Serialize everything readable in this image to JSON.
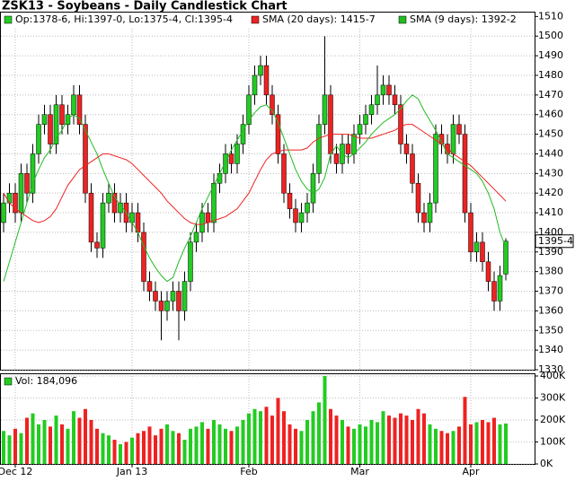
{
  "chart_data": {
    "type": "candlestick",
    "title": "ZSK13 - Soybeans - Daily Candlestick Chart",
    "ohlc_label": "Op:1378-6, Hi:1397-0, Lo:1375-4, Cl:1395-4",
    "last_label": "1395-4",
    "categories": [
      null,
      null,
      "Dec 12",
      null,
      null,
      null,
      null,
      null,
      null,
      null,
      null,
      null,
      null,
      null,
      null,
      null,
      null,
      null,
      null,
      null,
      null,
      null,
      "Jan 13",
      null,
      null,
      null,
      null,
      null,
      null,
      null,
      null,
      null,
      null,
      null,
      null,
      null,
      null,
      null,
      null,
      null,
      null,
      null,
      "Feb",
      null,
      null,
      null,
      null,
      null,
      null,
      null,
      null,
      null,
      null,
      null,
      null,
      null,
      null,
      null,
      null,
      null,
      null,
      "Mar",
      null,
      null,
      null,
      null,
      null,
      null,
      null,
      null,
      null,
      null,
      null,
      null,
      null,
      null,
      null,
      null,
      null,
      null,
      "Apr",
      null,
      null,
      null,
      null,
      null,
      null
    ],
    "open": [
      1405,
      1415,
      1420,
      1410,
      1430,
      1420,
      1440,
      1455,
      1460,
      1445,
      1465,
      1455,
      1460,
      1470,
      1455,
      1420,
      1395,
      1392,
      1415,
      1420,
      1410,
      1415,
      1405,
      1410,
      1400,
      1375,
      1370,
      1365,
      1360,
      1365,
      1370,
      1360,
      1375,
      1395,
      1400,
      1410,
      1405,
      1425,
      1430,
      1440,
      1435,
      1445,
      1455,
      1470,
      1480,
      1485,
      1470,
      1460,
      1440,
      1420,
      1412,
      1405,
      1410,
      1415,
      1430,
      1455,
      1470,
      1440,
      1435,
      1445,
      1440,
      1450,
      1455,
      1460,
      1465,
      1470,
      1475,
      1470,
      1465,
      1445,
      1440,
      1425,
      1410,
      1405,
      1415,
      1450,
      1445,
      1440,
      1455,
      1450,
      1410,
      1390,
      1395,
      1385,
      1375,
      1365,
      1378.75
    ],
    "high": [
      1420,
      1425,
      1425,
      1435,
      1435,
      1445,
      1460,
      1465,
      1465,
      1470,
      1470,
      1465,
      1475,
      1475,
      1460,
      1425,
      1400,
      1420,
      1425,
      1425,
      1420,
      1420,
      1415,
      1415,
      1405,
      1380,
      1375,
      1370,
      1370,
      1375,
      1375,
      1380,
      1400,
      1405,
      1415,
      1415,
      1430,
      1435,
      1445,
      1445,
      1450,
      1460,
      1475,
      1485,
      1490,
      1490,
      1475,
      1465,
      1445,
      1425,
      1417,
      1415,
      1420,
      1435,
      1460,
      1500,
      1475,
      1445,
      1450,
      1450,
      1455,
      1460,
      1465,
      1470,
      1485,
      1480,
      1480,
      1475,
      1470,
      1450,
      1445,
      1430,
      1415,
      1420,
      1455,
      1455,
      1450,
      1460,
      1460,
      1455,
      1415,
      1400,
      1400,
      1390,
      1380,
      1383,
      1397
    ],
    "low": [
      1400,
      1410,
      1405,
      1405,
      1415,
      1415,
      1435,
      1450,
      1440,
      1440,
      1450,
      1450,
      1455,
      1450,
      1415,
      1390,
      1387,
      1387,
      1410,
      1405,
      1405,
      1400,
      1400,
      1395,
      1370,
      1365,
      1360,
      1345,
      1355,
      1360,
      1345,
      1355,
      1370,
      1390,
      1395,
      1400,
      1400,
      1420,
      1425,
      1430,
      1430,
      1440,
      1450,
      1465,
      1475,
      1465,
      1455,
      1435,
      1415,
      1407,
      1400,
      1400,
      1405,
      1410,
      1425,
      1450,
      1435,
      1430,
      1430,
      1435,
      1435,
      1445,
      1450,
      1455,
      1460,
      1465,
      1465,
      1460,
      1440,
      1435,
      1420,
      1405,
      1400,
      1400,
      1410,
      1440,
      1435,
      1435,
      1445,
      1405,
      1385,
      1385,
      1380,
      1370,
      1360,
      1360,
      1375.5
    ],
    "close": [
      1415,
      1420,
      1410,
      1430,
      1420,
      1440,
      1455,
      1460,
      1445,
      1465,
      1455,
      1460,
      1470,
      1455,
      1420,
      1395,
      1392,
      1415,
      1420,
      1410,
      1415,
      1405,
      1410,
      1400,
      1375,
      1370,
      1365,
      1360,
      1365,
      1370,
      1360,
      1375,
      1395,
      1400,
      1410,
      1405,
      1425,
      1430,
      1440,
      1435,
      1445,
      1455,
      1470,
      1480,
      1485,
      1470,
      1460,
      1440,
      1420,
      1412,
      1405,
      1410,
      1415,
      1430,
      1455,
      1470,
      1440,
      1435,
      1445,
      1440,
      1450,
      1455,
      1460,
      1465,
      1470,
      1475,
      1470,
      1465,
      1445,
      1440,
      1425,
      1410,
      1405,
      1415,
      1450,
      1445,
      1440,
      1455,
      1450,
      1410,
      1390,
      1395,
      1385,
      1375,
      1365,
      1378,
      1395.5
    ],
    "up_color": "#22cc22",
    "down_color": "#ee2222",
    "series": [
      {
        "name": "SMA (20 days): 1415-7",
        "color": "#ee2222",
        "values": [
          1420,
          1415,
          1412,
          1410,
          1408,
          1406,
          1405,
          1406,
          1408,
          1412,
          1418,
          1424,
          1428,
          1432,
          1434,
          1436,
          1438,
          1440,
          1440,
          1439,
          1438,
          1437,
          1435,
          1432,
          1429,
          1426,
          1423,
          1420,
          1416,
          1413,
          1410,
          1407,
          1405,
          1404,
          1404,
          1405,
          1406,
          1407,
          1408,
          1410,
          1412,
          1416,
          1420,
          1426,
          1432,
          1437,
          1440,
          1441,
          1442,
          1442,
          1442,
          1442,
          1443,
          1446,
          1448,
          1449,
          1450,
          1450,
          1450,
          1450,
          1449,
          1448,
          1448,
          1448,
          1449,
          1450,
          1451,
          1452,
          1454,
          1455,
          1455,
          1453,
          1451,
          1449,
          1447,
          1445,
          1443,
          1440,
          1438,
          1436,
          1434,
          1431,
          1428,
          1425,
          1422,
          1419,
          1415.875
        ]
      },
      {
        "name": "SMA (9 days): 1392-2",
        "color": "#22bb22",
        "values": [
          1375,
          1385,
          1395,
          1405,
          1415,
          1425,
          1432,
          1438,
          1442,
          1448,
          1452,
          1458,
          1460,
          1458,
          1452,
          1446,
          1440,
          1432,
          1425,
          1418,
          1414,
          1410,
          1405,
          1400,
          1393,
          1387,
          1382,
          1378,
          1375,
          1377,
          1385,
          1392,
          1398,
          1405,
          1412,
          1418,
          1424,
          1430,
          1436,
          1442,
          1447,
          1452,
          1457,
          1461,
          1464,
          1465,
          1462,
          1456,
          1448,
          1440,
          1432,
          1426,
          1422,
          1420,
          1422,
          1428,
          1440,
          1444,
          1440,
          1438,
          1440,
          1443,
          1446,
          1450,
          1453,
          1456,
          1458,
          1460,
          1463,
          1467,
          1470,
          1468,
          1462,
          1457,
          1452,
          1446,
          1440,
          1438,
          1436,
          1434,
          1432,
          1430,
          1426,
          1420,
          1412,
          1400,
          1392.25
        ]
      }
    ],
    "ylim": [
      1330,
      1512
    ],
    "yticks": [
      1330,
      1340,
      1350,
      1360,
      1370,
      1380,
      1390,
      1400,
      1410,
      1420,
      1430,
      1440,
      1450,
      1460,
      1470,
      1480,
      1490,
      1500,
      1510
    ],
    "grid": true,
    "volume": {
      "name": "Vol: 184,096",
      "values": [
        150000,
        130000,
        160000,
        140000,
        210000,
        230000,
        180000,
        200000,
        170000,
        220000,
        180000,
        160000,
        240000,
        210000,
        250000,
        200000,
        160000,
        140000,
        130000,
        110000,
        90000,
        100000,
        120000,
        140000,
        150000,
        170000,
        130000,
        160000,
        180000,
        150000,
        140000,
        110000,
        160000,
        170000,
        190000,
        160000,
        200000,
        180000,
        160000,
        150000,
        170000,
        200000,
        230000,
        250000,
        240000,
        260000,
        220000,
        300000,
        240000,
        180000,
        160000,
        150000,
        200000,
        240000,
        280000,
        400000,
        250000,
        220000,
        200000,
        170000,
        160000,
        180000,
        170000,
        200000,
        190000,
        240000,
        220000,
        210000,
        230000,
        220000,
        200000,
        250000,
        230000,
        180000,
        160000,
        150000,
        140000,
        150000,
        170000,
        305000,
        180000,
        190000,
        200000,
        190000,
        210000,
        180000,
        184096
      ],
      "ylim": [
        0,
        400000
      ],
      "yticks": [
        {
          "value": 0,
          "label": "0K"
        },
        {
          "value": 100000,
          "label": "100K"
        },
        {
          "value": 200000,
          "label": "200K"
        },
        {
          "value": 300000,
          "label": "300K"
        },
        {
          "value": 400000,
          "label": "400K"
        }
      ]
    }
  }
}
